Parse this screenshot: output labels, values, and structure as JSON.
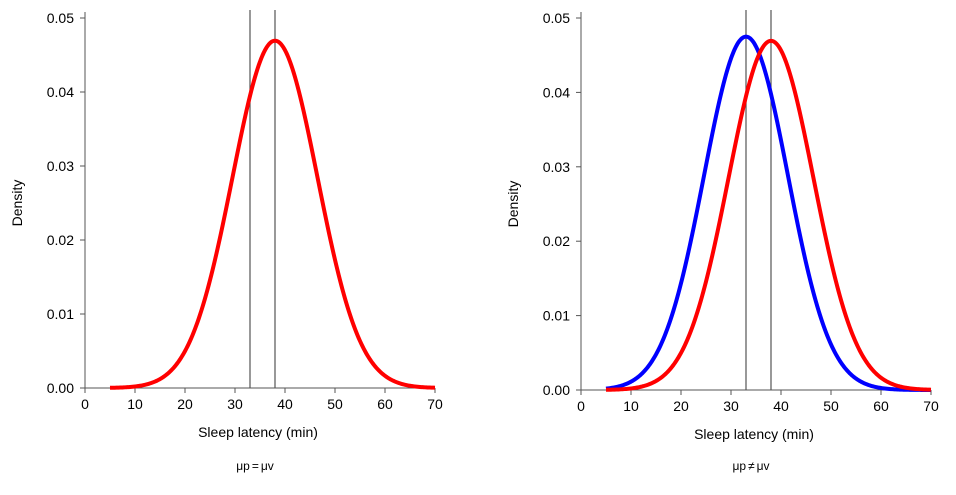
{
  "chart_data": [
    {
      "type": "line",
      "panel": "left",
      "xlabel": "Sleep latency (min)",
      "ylabel": "Density",
      "xlim": [
        0,
        70
      ],
      "ylim": [
        0,
        0.05
      ],
      "xticks": [
        0,
        10,
        20,
        30,
        40,
        50,
        60,
        70
      ],
      "xtick_labels": [
        "0",
        "10",
        "20",
        "30",
        "40",
        "50",
        "60",
        "70"
      ],
      "yticks": [
        0,
        0.01,
        0.02,
        0.03,
        0.04,
        0.05
      ],
      "ytick_labels": [
        "0.00",
        "0.01",
        "0.02",
        "0.03",
        "0.04",
        "0.05"
      ],
      "x_range": [
        5,
        70
      ],
      "vlines": [
        33,
        38
      ],
      "series": [
        {
          "name": "red",
          "color": "#ff0000",
          "distribution": "normal",
          "mean": 38,
          "sd": 8.5
        }
      ],
      "caption": {
        "left": "μp",
        "op": "=",
        "right": "μv"
      }
    },
    {
      "type": "line",
      "panel": "right",
      "xlabel": "Sleep latency (min)",
      "ylabel": "Density",
      "xlim": [
        0,
        70
      ],
      "ylim": [
        0,
        0.05
      ],
      "xticks": [
        0,
        10,
        20,
        30,
        40,
        50,
        60,
        70
      ],
      "xtick_labels": [
        "0",
        "10",
        "20",
        "30",
        "40",
        "50",
        "60",
        "70"
      ],
      "yticks": [
        0,
        0.01,
        0.02,
        0.03,
        0.04,
        0.05
      ],
      "ytick_labels": [
        "0.00",
        "0.01",
        "0.02",
        "0.03",
        "0.04",
        "0.05"
      ],
      "x_range": [
        5,
        70
      ],
      "vlines": [
        33,
        38
      ],
      "series": [
        {
          "name": "blue",
          "color": "#0000ff",
          "distribution": "normal",
          "mean": 33,
          "sd": 8.4
        },
        {
          "name": "red",
          "color": "#ff0000",
          "distribution": "normal",
          "mean": 38,
          "sd": 8.5
        }
      ],
      "caption": {
        "left": "μp",
        "op": "≠",
        "right": "μv"
      }
    }
  ]
}
